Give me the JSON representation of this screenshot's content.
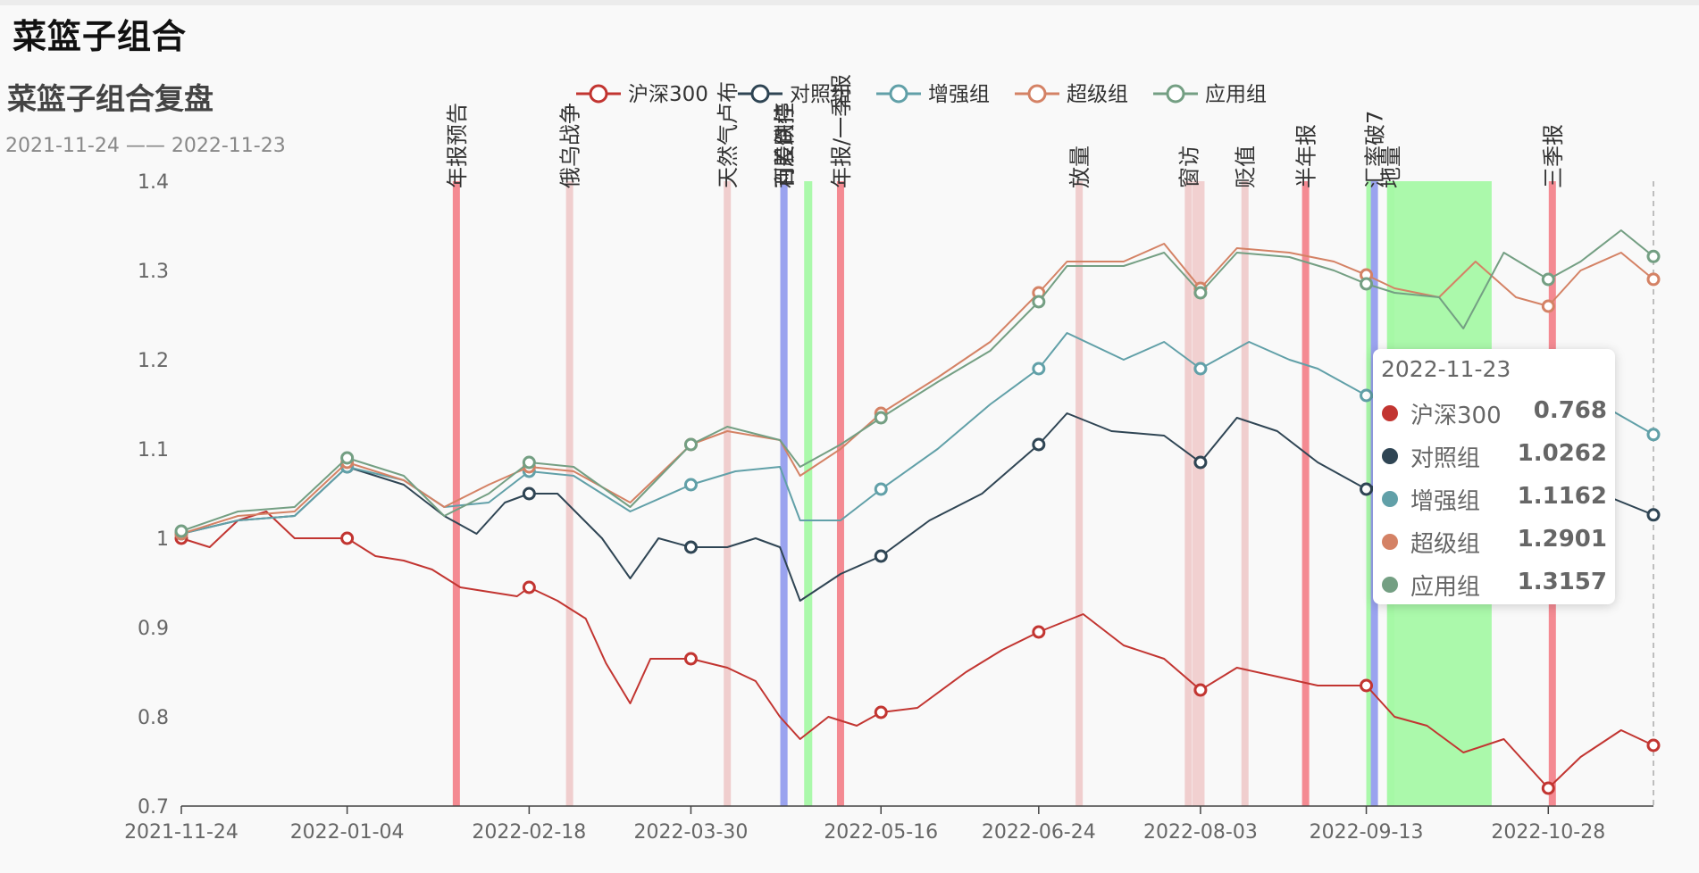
{
  "page": {
    "title": "菜篮子组合"
  },
  "chart_data": {
    "type": "line",
    "title": "菜篮子组合复盘",
    "subtitle": "2021-11-24 —— 2022-11-23",
    "x_ticks": [
      "2021-11-24",
      "2022-01-04",
      "2022-02-18",
      "2022-03-30",
      "2022-05-16",
      "2022-06-24",
      "2022-08-03",
      "2022-09-13",
      "2022-10-28"
    ],
    "x_range": [
      "2021-11-24",
      "2022-11-23"
    ],
    "ylim": [
      0.7,
      1.4
    ],
    "y_ticks": [
      "0.7",
      "0.8",
      "0.9",
      "1",
      "1.1",
      "1.2",
      "1.3",
      "1.4"
    ],
    "legend_position": "top-center",
    "series": [
      {
        "name": "沪深300",
        "color": "#c23531",
        "points": [
          [
            "2021-11-24",
            1.0
          ],
          [
            "2021-12-01",
            0.99
          ],
          [
            "2021-12-08",
            1.02
          ],
          [
            "2021-12-15",
            1.03
          ],
          [
            "2021-12-22",
            1.0
          ],
          [
            "2022-01-04",
            1.0
          ],
          [
            "2022-01-11",
            0.98
          ],
          [
            "2022-01-18",
            0.975
          ],
          [
            "2022-01-25",
            0.965
          ],
          [
            "2022-02-01",
            0.945
          ],
          [
            "2022-02-08",
            0.94
          ],
          [
            "2022-02-15",
            0.935
          ],
          [
            "2022-02-18",
            0.945
          ],
          [
            "2022-02-25",
            0.93
          ],
          [
            "2022-03-04",
            0.91
          ],
          [
            "2022-03-09",
            0.86
          ],
          [
            "2022-03-15",
            0.815
          ],
          [
            "2022-03-20",
            0.865
          ],
          [
            "2022-03-30",
            0.865
          ],
          [
            "2022-04-08",
            0.855
          ],
          [
            "2022-04-15",
            0.84
          ],
          [
            "2022-04-21",
            0.8
          ],
          [
            "2022-04-26",
            0.775
          ],
          [
            "2022-05-03",
            0.8
          ],
          [
            "2022-05-10",
            0.79
          ],
          [
            "2022-05-16",
            0.805
          ],
          [
            "2022-05-25",
            0.81
          ],
          [
            "2022-06-06",
            0.85
          ],
          [
            "2022-06-15",
            0.875
          ],
          [
            "2022-06-24",
            0.895
          ],
          [
            "2022-07-05",
            0.915
          ],
          [
            "2022-07-15",
            0.88
          ],
          [
            "2022-07-25",
            0.865
          ],
          [
            "2022-08-03",
            0.83
          ],
          [
            "2022-08-12",
            0.855
          ],
          [
            "2022-08-22",
            0.845
          ],
          [
            "2022-09-01",
            0.835
          ],
          [
            "2022-09-13",
            0.835
          ],
          [
            "2022-09-20",
            0.8
          ],
          [
            "2022-09-28",
            0.79
          ],
          [
            "2022-10-07",
            0.76
          ],
          [
            "2022-10-17",
            0.775
          ],
          [
            "2022-10-28",
            0.72
          ],
          [
            "2022-11-05",
            0.755
          ],
          [
            "2022-11-15",
            0.785
          ],
          [
            "2022-11-23",
            0.768
          ]
        ]
      },
      {
        "name": "对照组",
        "color": "#2f4554",
        "points": [
          [
            "2021-11-24",
            1.005
          ],
          [
            "2021-12-08",
            1.02
          ],
          [
            "2021-12-22",
            1.025
          ],
          [
            "2022-01-04",
            1.08
          ],
          [
            "2022-01-18",
            1.06
          ],
          [
            "2022-01-28",
            1.025
          ],
          [
            "2022-02-05",
            1.005
          ],
          [
            "2022-02-12",
            1.04
          ],
          [
            "2022-02-18",
            1.05
          ],
          [
            "2022-02-25",
            1.05
          ],
          [
            "2022-03-08",
            1.0
          ],
          [
            "2022-03-15",
            0.955
          ],
          [
            "2022-03-22",
            1.0
          ],
          [
            "2022-03-30",
            0.99
          ],
          [
            "2022-04-08",
            0.99
          ],
          [
            "2022-04-15",
            1.0
          ],
          [
            "2022-04-21",
            0.99
          ],
          [
            "2022-04-26",
            0.93
          ],
          [
            "2022-05-06",
            0.96
          ],
          [
            "2022-05-16",
            0.98
          ],
          [
            "2022-05-28",
            1.02
          ],
          [
            "2022-06-10",
            1.05
          ],
          [
            "2022-06-24",
            1.105
          ],
          [
            "2022-07-01",
            1.14
          ],
          [
            "2022-07-12",
            1.12
          ],
          [
            "2022-07-25",
            1.115
          ],
          [
            "2022-08-03",
            1.085
          ],
          [
            "2022-08-12",
            1.135
          ],
          [
            "2022-08-22",
            1.12
          ],
          [
            "2022-09-01",
            1.085
          ],
          [
            "2022-09-13",
            1.055
          ],
          [
            "2022-09-22",
            1.07
          ],
          [
            "2022-10-07",
            1.075
          ],
          [
            "2022-10-17",
            1.04
          ],
          [
            "2022-10-28",
            1.06
          ],
          [
            "2022-11-10",
            1.05
          ],
          [
            "2022-11-23",
            1.0262
          ]
        ]
      },
      {
        "name": "增强组",
        "color": "#61a0a8",
        "points": [
          [
            "2021-11-24",
            1.005
          ],
          [
            "2021-12-08",
            1.02
          ],
          [
            "2021-12-22",
            1.025
          ],
          [
            "2022-01-04",
            1.08
          ],
          [
            "2022-01-18",
            1.065
          ],
          [
            "2022-01-28",
            1.035
          ],
          [
            "2022-02-08",
            1.04
          ],
          [
            "2022-02-18",
            1.075
          ],
          [
            "2022-03-01",
            1.07
          ],
          [
            "2022-03-15",
            1.03
          ],
          [
            "2022-03-30",
            1.06
          ],
          [
            "2022-04-10",
            1.075
          ],
          [
            "2022-04-21",
            1.08
          ],
          [
            "2022-04-26",
            1.02
          ],
          [
            "2022-05-06",
            1.02
          ],
          [
            "2022-05-16",
            1.055
          ],
          [
            "2022-05-30",
            1.1
          ],
          [
            "2022-06-12",
            1.15
          ],
          [
            "2022-06-24",
            1.19
          ],
          [
            "2022-07-01",
            1.23
          ],
          [
            "2022-07-15",
            1.2
          ],
          [
            "2022-07-25",
            1.22
          ],
          [
            "2022-08-03",
            1.19
          ],
          [
            "2022-08-15",
            1.22
          ],
          [
            "2022-08-25",
            1.2
          ],
          [
            "2022-09-01",
            1.19
          ],
          [
            "2022-09-13",
            1.16
          ],
          [
            "2022-09-22",
            1.15
          ],
          [
            "2022-10-07",
            1.12
          ],
          [
            "2022-10-17",
            1.15
          ],
          [
            "2022-10-28",
            1.16
          ],
          [
            "2022-11-10",
            1.15
          ],
          [
            "2022-11-23",
            1.1162
          ]
        ]
      },
      {
        "name": "超级组",
        "color": "#d48265",
        "points": [
          [
            "2021-11-24",
            1.005
          ],
          [
            "2021-12-08",
            1.025
          ],
          [
            "2021-12-22",
            1.03
          ],
          [
            "2022-01-04",
            1.085
          ],
          [
            "2022-01-18",
            1.065
          ],
          [
            "2022-01-28",
            1.035
          ],
          [
            "2022-02-08",
            1.06
          ],
          [
            "2022-02-18",
            1.08
          ],
          [
            "2022-03-01",
            1.075
          ],
          [
            "2022-03-15",
            1.04
          ],
          [
            "2022-03-30",
            1.105
          ],
          [
            "2022-04-08",
            1.12
          ],
          [
            "2022-04-21",
            1.11
          ],
          [
            "2022-04-26",
            1.07
          ],
          [
            "2022-05-06",
            1.1
          ],
          [
            "2022-05-16",
            1.14
          ],
          [
            "2022-05-30",
            1.18
          ],
          [
            "2022-06-12",
            1.22
          ],
          [
            "2022-06-24",
            1.275
          ],
          [
            "2022-07-01",
            1.31
          ],
          [
            "2022-07-15",
            1.31
          ],
          [
            "2022-07-25",
            1.33
          ],
          [
            "2022-08-03",
            1.28
          ],
          [
            "2022-08-12",
            1.325
          ],
          [
            "2022-08-25",
            1.32
          ],
          [
            "2022-09-05",
            1.31
          ],
          [
            "2022-09-13",
            1.295
          ],
          [
            "2022-09-20",
            1.28
          ],
          [
            "2022-10-01",
            1.27
          ],
          [
            "2022-10-10",
            1.31
          ],
          [
            "2022-10-20",
            1.27
          ],
          [
            "2022-10-28",
            1.26
          ],
          [
            "2022-11-05",
            1.3
          ],
          [
            "2022-11-15",
            1.32
          ],
          [
            "2022-11-23",
            1.2901
          ]
        ]
      },
      {
        "name": "应用组",
        "color": "#749f83",
        "points": [
          [
            "2021-11-24",
            1.008
          ],
          [
            "2021-12-08",
            1.03
          ],
          [
            "2021-12-22",
            1.035
          ],
          [
            "2022-01-04",
            1.09
          ],
          [
            "2022-01-18",
            1.07
          ],
          [
            "2022-01-28",
            1.025
          ],
          [
            "2022-02-08",
            1.05
          ],
          [
            "2022-02-18",
            1.085
          ],
          [
            "2022-03-01",
            1.08
          ],
          [
            "2022-03-15",
            1.035
          ],
          [
            "2022-03-30",
            1.105
          ],
          [
            "2022-04-08",
            1.125
          ],
          [
            "2022-04-21",
            1.11
          ],
          [
            "2022-04-26",
            1.08
          ],
          [
            "2022-05-06",
            1.105
          ],
          [
            "2022-05-16",
            1.135
          ],
          [
            "2022-05-30",
            1.175
          ],
          [
            "2022-06-12",
            1.21
          ],
          [
            "2022-06-24",
            1.265
          ],
          [
            "2022-07-01",
            1.305
          ],
          [
            "2022-07-15",
            1.305
          ],
          [
            "2022-07-25",
            1.32
          ],
          [
            "2022-08-03",
            1.275
          ],
          [
            "2022-08-12",
            1.32
          ],
          [
            "2022-08-25",
            1.315
          ],
          [
            "2022-09-05",
            1.3
          ],
          [
            "2022-09-13",
            1.285
          ],
          [
            "2022-09-20",
            1.275
          ],
          [
            "2022-10-01",
            1.27
          ],
          [
            "2022-10-07",
            1.235
          ],
          [
            "2022-10-17",
            1.32
          ],
          [
            "2022-10-28",
            1.29
          ],
          [
            "2022-11-05",
            1.31
          ],
          [
            "2022-11-15",
            1.345
          ],
          [
            "2022-11-23",
            1.3157
          ]
        ]
      }
    ],
    "markers": [
      "2021-11-24",
      "2022-01-04",
      "2022-02-18",
      "2022-03-30",
      "2022-05-16",
      "2022-06-24",
      "2022-08-03",
      "2022-09-13",
      "2022-10-28",
      "2022-11-23"
    ],
    "events": [
      {
        "label": "年报预告",
        "date": "2022-01-31",
        "color": "#f48a92"
      },
      {
        "label": "俄乌战争",
        "date": "2022-02-28",
        "color": "#f0cece"
      },
      {
        "label": "天然气卢布",
        "date": "2022-04-08",
        "color": "#f0cece"
      },
      {
        "label": "利差倒挂",
        "date": "2022-04-22",
        "color": "#9aa3ef"
      },
      {
        "label": "百股跌停",
        "date": "2022-04-22",
        "color": "#9aa3ef"
      },
      {
        "label": "年报/一季报",
        "date": "2022-05-06",
        "color": "#f48a92"
      },
      {
        "label": "放量",
        "date": "2022-07-04",
        "color": "#f0cece"
      },
      {
        "label": "窗访",
        "date": "2022-07-31",
        "color": "#f0cece"
      },
      {
        "label": "贬值",
        "date": "2022-08-14",
        "color": "#f0cece"
      },
      {
        "label": "半年报",
        "date": "2022-08-29",
        "color": "#f48a92"
      },
      {
        "label": "汇率破7",
        "date": "2022-09-15",
        "color": "#9aa3ef"
      },
      {
        "label": "地量",
        "date": "2022-09-19",
        "color": "#a6f9a6"
      },
      {
        "label": "三季报",
        "date": "2022-10-29",
        "color": "#f48a92"
      }
    ],
    "event_bands": [
      {
        "from": "2022-04-27",
        "to": "2022-04-29",
        "color": "#a6f9a6"
      },
      {
        "from": "2022-08-01",
        "to": "2022-08-04",
        "color": "#f0cece"
      },
      {
        "from": "2022-09-13",
        "to": "2022-09-15",
        "color": "#a6f9a6"
      },
      {
        "from": "2022-09-19",
        "to": "2022-10-14",
        "color": "#a6f9a6"
      }
    ]
  },
  "tooltip": {
    "date": "2022-11-23",
    "rows": [
      {
        "name": "沪深300",
        "value": "0.768",
        "color": "#c23531"
      },
      {
        "name": "对照组",
        "value": "1.0262",
        "color": "#2f4554"
      },
      {
        "name": "增强组",
        "value": "1.1162",
        "color": "#61a0a8"
      },
      {
        "name": "超级组",
        "value": "1.2901",
        "color": "#d48265"
      },
      {
        "name": "应用组",
        "value": "1.3157",
        "color": "#749f83"
      }
    ]
  }
}
